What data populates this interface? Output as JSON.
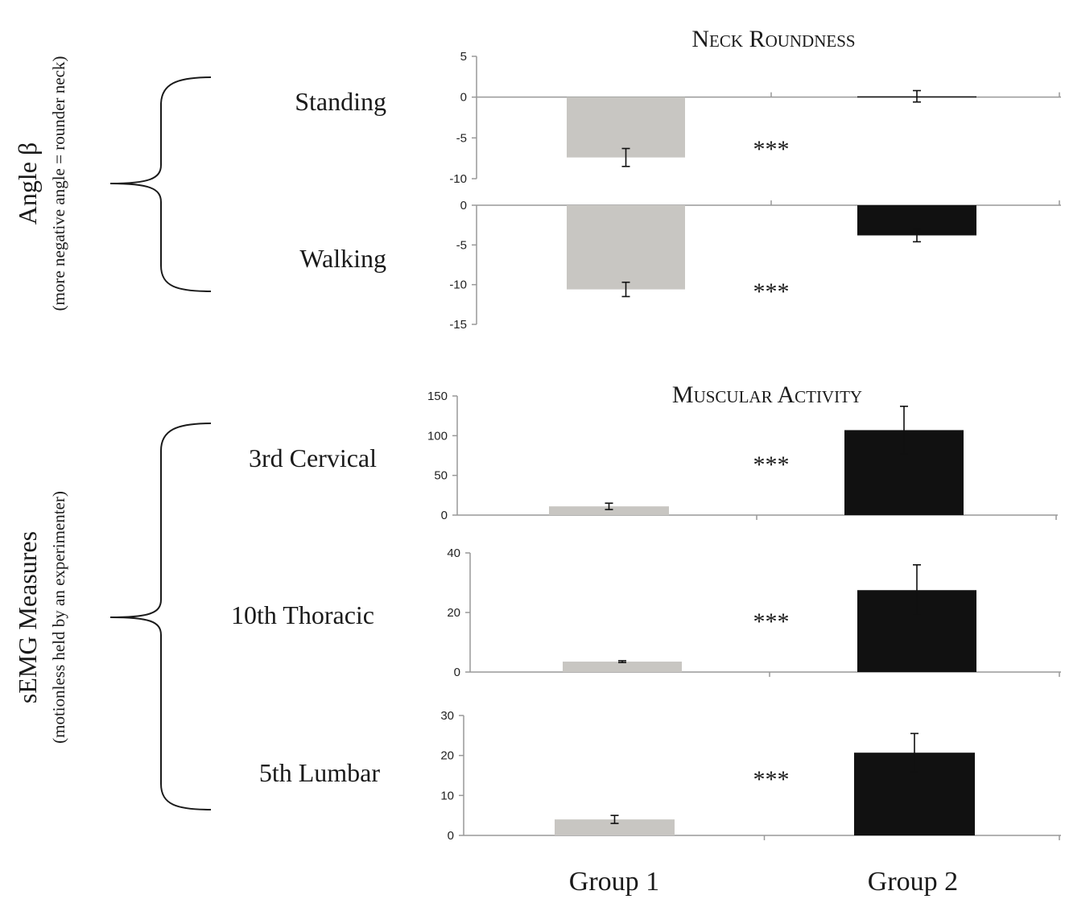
{
  "left_labels": {
    "angle": {
      "title": "Angle β",
      "subtitle": "(more negative angle = rounder neck)"
    },
    "semg": {
      "title": "sEMG Measures",
      "subtitle": "(motionless held by an experimenter)"
    }
  },
  "sections": {
    "neck": {
      "title": "Neck Roundness"
    },
    "muscle": {
      "title": "Muscular Activity"
    }
  },
  "groups": [
    "Group 1",
    "Group 2"
  ],
  "significance": "***",
  "colors": {
    "group1": "#c8c6c2",
    "group2": "#111111",
    "axis": "#999999",
    "text": "#1a1a1a"
  },
  "chart_data": [
    {
      "type": "bar",
      "row_label": "Standing",
      "section": "Neck Roundness",
      "categories": [
        "Group 1",
        "Group 2"
      ],
      "values": [
        -7.4,
        0.1
      ],
      "errors": [
        1.1,
        0.7
      ],
      "ylim": [
        -10,
        5
      ],
      "yticks": [
        "5",
        "0",
        "-5",
        "-10"
      ],
      "significance": "***"
    },
    {
      "type": "bar",
      "row_label": "Walking",
      "section": "Neck Roundness",
      "categories": [
        "Group 1",
        "Group 2"
      ],
      "values": [
        -10.6,
        -3.8
      ],
      "errors": [
        0.9,
        0.8
      ],
      "ylim": [
        -15,
        0
      ],
      "yticks": [
        "0",
        "-5",
        "-10",
        "-15"
      ],
      "significance": "***"
    },
    {
      "type": "bar",
      "row_label": "3rd Cervical",
      "section": "Muscular Activity",
      "categories": [
        "Group 1",
        "Group 2"
      ],
      "values": [
        11,
        107
      ],
      "errors": [
        4,
        30
      ],
      "ylim": [
        0,
        150
      ],
      "yticks": [
        "150",
        "100",
        "50",
        "0"
      ],
      "significance": "***"
    },
    {
      "type": "bar",
      "row_label": "10th Thoracic",
      "section": "Muscular Activity",
      "categories": [
        "Group 1",
        "Group 2"
      ],
      "values": [
        3.5,
        27.5
      ],
      "errors": [
        0.3,
        8.5
      ],
      "ylim": [
        0,
        40
      ],
      "yticks": [
        "40",
        "20",
        "0"
      ],
      "significance": "***"
    },
    {
      "type": "bar",
      "row_label": "5th Lumbar",
      "section": "Muscular Activity",
      "categories": [
        "Group 1",
        "Group 2"
      ],
      "values": [
        4,
        20.7
      ],
      "errors": [
        1,
        4.8
      ],
      "ylim": [
        0,
        30
      ],
      "yticks": [
        "30",
        "20",
        "10",
        "0"
      ],
      "significance": "***"
    }
  ]
}
